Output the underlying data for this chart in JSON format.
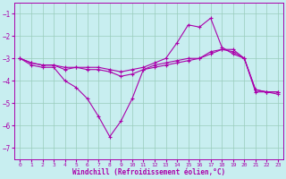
{
  "xlabel": "Windchill (Refroidissement éolien,°C)",
  "bg_color": "#c8eef0",
  "grid_color": "#99ccbb",
  "line_color": "#aa00aa",
  "xlim": [
    -0.5,
    23.5
  ],
  "ylim": [
    -7.5,
    -0.5
  ],
  "yticks": [
    -7,
    -6,
    -5,
    -4,
    -3,
    -2,
    -1
  ],
  "xticks": [
    0,
    1,
    2,
    3,
    4,
    5,
    6,
    7,
    8,
    9,
    10,
    11,
    12,
    13,
    14,
    15,
    16,
    17,
    18,
    19,
    20,
    21,
    22,
    23
  ],
  "line1_x": [
    0,
    1,
    2,
    3,
    4,
    5,
    6,
    7,
    8,
    9,
    10,
    11,
    12,
    13,
    14,
    15,
    16,
    17,
    18,
    19,
    20,
    21,
    22,
    23
  ],
  "line1_y": [
    -3.0,
    -3.3,
    -3.4,
    -3.4,
    -4.0,
    -4.3,
    -4.8,
    -5.6,
    -6.5,
    -5.8,
    -4.8,
    -3.5,
    -3.3,
    -3.2,
    -3.1,
    -3.0,
    -3.0,
    -2.7,
    -2.6,
    -2.6,
    -3.0,
    -4.5,
    -4.5,
    -4.6
  ],
  "line2_x": [
    0,
    1,
    2,
    3,
    4,
    5,
    6,
    7,
    8,
    9,
    10,
    11,
    12,
    13,
    14,
    15,
    16,
    17,
    18,
    19,
    20,
    21,
    22,
    23
  ],
  "line2_y": [
    -3.0,
    -3.2,
    -3.3,
    -3.3,
    -3.4,
    -3.4,
    -3.4,
    -3.4,
    -3.5,
    -3.6,
    -3.5,
    -3.4,
    -3.2,
    -3.0,
    -2.3,
    -1.5,
    -1.6,
    -1.2,
    -2.5,
    -2.8,
    -3.0,
    -4.4,
    -4.5,
    -4.5
  ],
  "line3_x": [
    0,
    1,
    2,
    3,
    4,
    5,
    6,
    7,
    8,
    9,
    10,
    11,
    12,
    13,
    14,
    15,
    16,
    17,
    18,
    19,
    20,
    21,
    22,
    23
  ],
  "line3_y": [
    -3.0,
    -3.2,
    -3.3,
    -3.3,
    -3.5,
    -3.4,
    -3.5,
    -3.5,
    -3.6,
    -3.8,
    -3.7,
    -3.5,
    -3.4,
    -3.3,
    -3.2,
    -3.1,
    -3.0,
    -2.8,
    -2.6,
    -2.7,
    -3.0,
    -4.4,
    -4.5,
    -4.5
  ]
}
